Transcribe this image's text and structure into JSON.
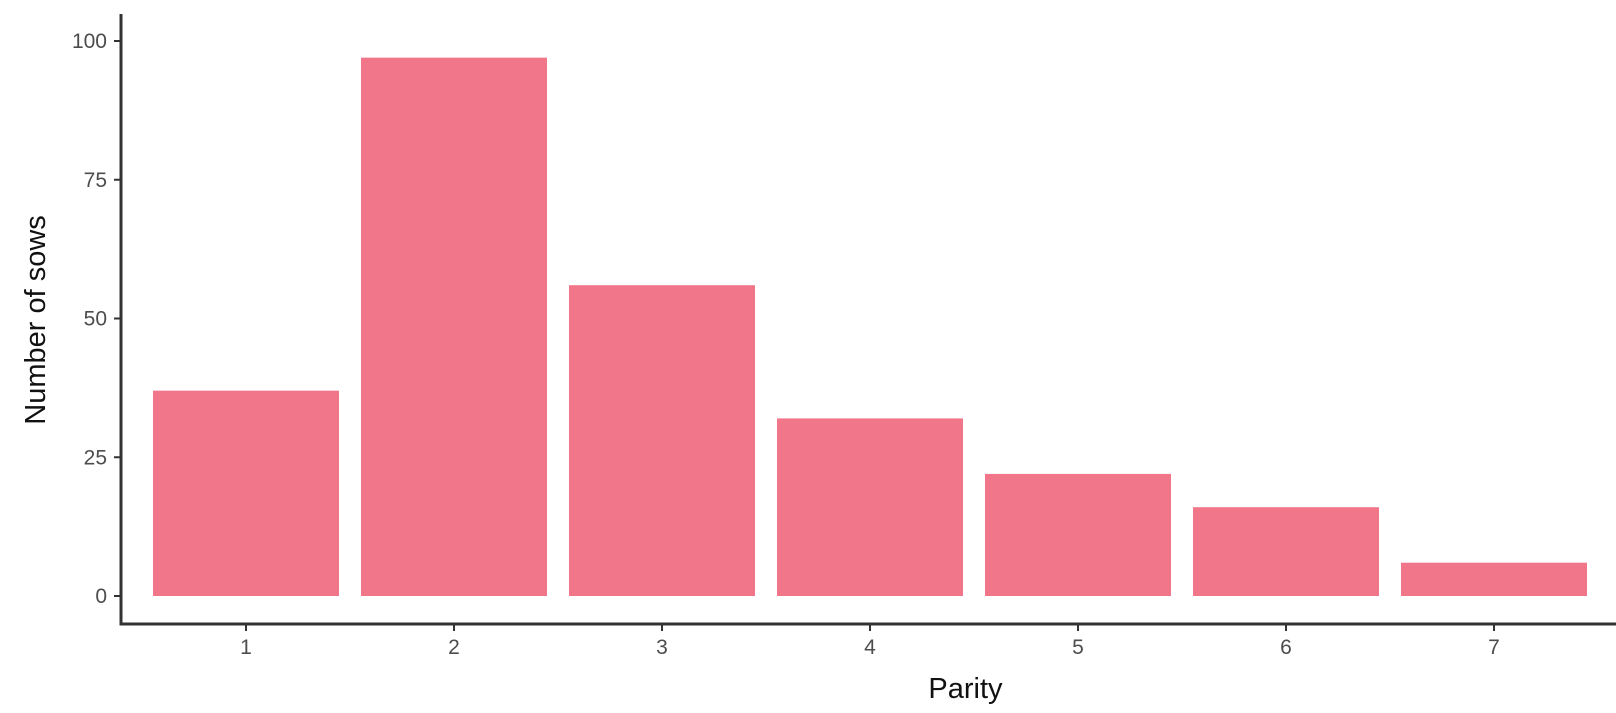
{
  "chart_data": {
    "type": "bar",
    "title": "",
    "xlabel": "Parity",
    "ylabel": "Number of sows",
    "categories": [
      "1",
      "2",
      "3",
      "4",
      "5",
      "6",
      "7"
    ],
    "values": [
      37,
      97,
      56,
      32,
      22,
      16,
      6
    ],
    "ylim": [
      0,
      100
    ],
    "yticks": [
      0,
      25,
      50,
      75,
      100
    ],
    "bar_color": "#f2768a",
    "axis_color": "#333333",
    "grid": false,
    "legend": "none"
  }
}
